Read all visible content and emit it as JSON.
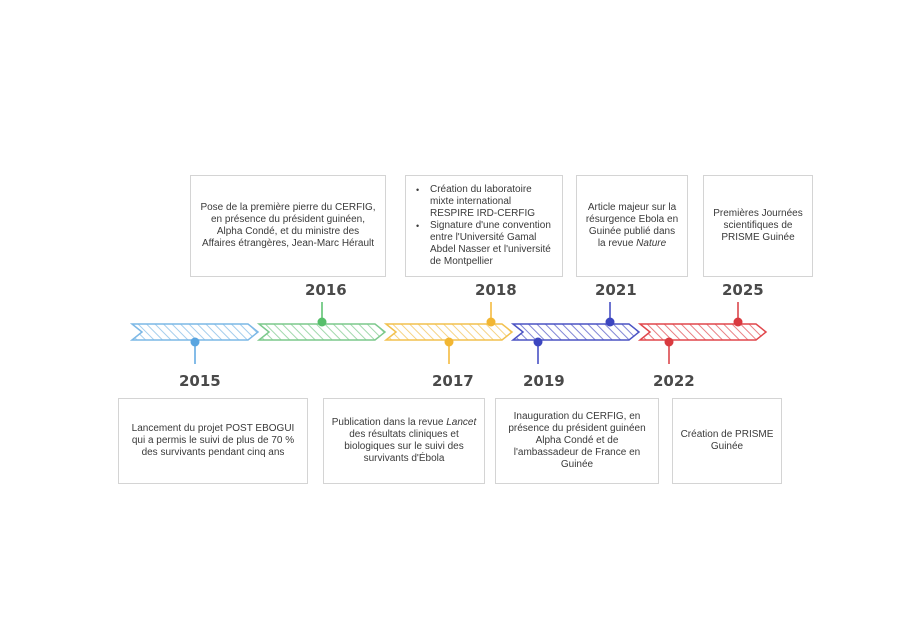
{
  "timeline": {
    "segments": [
      {
        "color": "#7cb8e6"
      },
      {
        "color": "#7cc98c"
      },
      {
        "color": "#f2c14e"
      },
      {
        "color": "#4c54c4"
      },
      {
        "color": "#e0474c"
      }
    ],
    "events": [
      {
        "year": "2015",
        "color": "#5aa5e0",
        "lines": [
          "Lancement du projet POST EBOGUI",
          "qui a permis le suivi de plus de 70 %",
          "des survivants pendant cinq ans"
        ]
      },
      {
        "year": "2016",
        "color": "#56bf6a",
        "lines": [
          "Pose de la première pierre du CERFIG,",
          "en présence du président guinéen,",
          "Alpha Condé, et du ministre des",
          "Affaires étrangères, Jean-Marc Hérault"
        ]
      },
      {
        "year": "2017",
        "color": "#f2b632",
        "lines_pre": [
          "Publication dans la revue "
        ],
        "italic": "Lancet",
        "lines": [
          "des résultats cliniques et",
          "biologiques sur le suivi des",
          "survivants d'Ébola"
        ]
      },
      {
        "year": "2018",
        "color": "#f2b632",
        "bullets": [
          [
            "Création du laboratoire",
            "mixte international",
            "RESPIRE IRD-CERFIG"
          ],
          [
            "Signature d'une convention",
            "entre l'Université Gamal",
            "Abdel Nasser et l'université",
            "de Montpellier"
          ]
        ]
      },
      {
        "year": "2019",
        "color": "#3c46c0",
        "lines": [
          "Inauguration du CERFIG, en",
          "présence du président guinéen",
          "Alpha Condé et de",
          "l'ambassadeur de France en",
          "Guinée"
        ]
      },
      {
        "year": "2021",
        "color": "#3c46c0",
        "lines": [
          "Article majeur sur la",
          "résurgence Ebola en",
          "Guinée publié dans"
        ],
        "last_pre": "la revue ",
        "italic": "Nature"
      },
      {
        "year": "2022",
        "color": "#d93a40",
        "lines": [
          "Création de PRISME",
          "Guinée"
        ]
      },
      {
        "year": "2025",
        "color": "#d93a40",
        "lines": [
          "Premières Journées",
          "scientifiques de",
          "PRISME Guinée"
        ]
      }
    ]
  }
}
